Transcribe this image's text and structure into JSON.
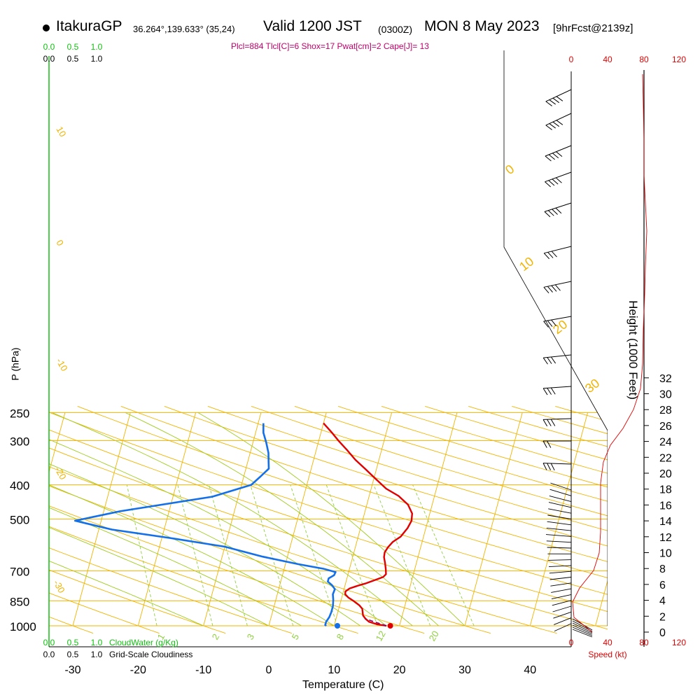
{
  "header": {
    "site": "ItakuraGP",
    "coords": "36.264°,139.633° (35,24)",
    "valid": "Valid 1200 JST",
    "zulu": "(0300Z)",
    "date": "MON 8 May 2023",
    "forecast": "[9hrFcst@2139z]"
  },
  "indices": "Plcl=884 Tlcl[C]=6 Shox=17 Pwat[cm]=2 Cape[J]= 13",
  "labels": {
    "ylabel": "P (hPa)",
    "xlabel": "Temperature (C)",
    "height_label": "Height (1000 Feet)",
    "speed_label": "Speed (kt)",
    "cloudwater_label": "CloudWater (g/Kg)",
    "cloudiness_label": "Grid-Scale Cloudiness"
  },
  "colors": {
    "isobar": "#f0b400",
    "isotherm": "#f0b400",
    "mixing_ratio": "#90d040",
    "moist_adiabat": "#a0cc20",
    "temperature": "#e00000",
    "dewpoint": "#1470e8",
    "parcel": "#8a0060",
    "cloud": "#10c010",
    "speed": "#e00000"
  },
  "chart_data": {
    "type": "skew-t",
    "title": "ItakuraGP Valid 1200 JST (0300Z) MON 8 May 2023",
    "xlabel": "Temperature (C)",
    "ylabel": "P (hPa)",
    "x_ticks": [
      -30,
      -20,
      -10,
      0,
      10,
      20,
      30,
      40
    ],
    "pressure_levels": [
      250,
      300,
      400,
      500,
      700,
      850,
      1000
    ],
    "cloud_scale_ticks": [
      "0.0",
      "0.5",
      "1.0"
    ],
    "skewed_isotherm_labels": [
      "10",
      "0",
      "-10",
      "-20",
      "-30"
    ],
    "dry_adiabat_labels": [
      "0",
      "10",
      "20",
      "30"
    ],
    "mixing_ratio_labels": [
      "1",
      "2",
      "3",
      "5",
      "8",
      "12",
      "20"
    ],
    "temperature": {
      "name": "Temperature",
      "points": [
        [
          18.0,
          1000
        ],
        [
          16.5,
          990
        ],
        [
          15.2,
          975
        ],
        [
          14.5,
          955
        ],
        [
          14.0,
          935
        ],
        [
          13.8,
          915
        ],
        [
          13.6,
          895
        ],
        [
          13.0,
          875
        ],
        [
          12.0,
          852
        ],
        [
          11.0,
          832
        ],
        [
          10.4,
          815
        ],
        [
          10.3,
          800
        ],
        [
          10.8,
          785
        ],
        [
          12.0,
          770
        ],
        [
          13.0,
          760
        ],
        [
          14.2,
          745
        ],
        [
          15.5,
          728
        ],
        [
          15.8,
          715
        ],
        [
          15.6,
          695
        ],
        [
          15.2,
          665
        ],
        [
          14.8,
          640
        ],
        [
          14.7,
          620
        ],
        [
          15.0,
          600
        ],
        [
          15.5,
          580
        ],
        [
          16.5,
          560
        ],
        [
          17.2,
          530
        ],
        [
          17.5,
          505
        ],
        [
          17.3,
          482
        ],
        [
          16.3,
          455
        ],
        [
          14.5,
          430
        ],
        [
          12.3,
          410
        ],
        [
          10.3,
          385
        ],
        [
          8.4,
          362
        ],
        [
          6.4,
          340
        ],
        [
          4.8,
          320
        ],
        [
          3.0,
          300
        ],
        [
          1.7,
          285
        ],
        [
          0.0,
          268
        ]
      ]
    },
    "dewpoint": {
      "name": "Dewpoint",
      "points": [
        [
          8.8,
          1000
        ],
        [
          8.6,
          995
        ],
        [
          8.6,
          975
        ],
        [
          8.9,
          945
        ],
        [
          9.0,
          915
        ],
        [
          9.0,
          880
        ],
        [
          8.8,
          845
        ],
        [
          8.5,
          815
        ],
        [
          8.6,
          788
        ],
        [
          8.0,
          768
        ],
        [
          7.2,
          750
        ],
        [
          7.2,
          735
        ],
        [
          7.9,
          720
        ],
        [
          8.0,
          705
        ],
        [
          6.0,
          690
        ],
        [
          2.0,
          670
        ],
        [
          -3.8,
          638
        ],
        [
          -10.0,
          598
        ],
        [
          -18.8,
          565
        ],
        [
          -28.0,
          535
        ],
        [
          -34.0,
          505
        ],
        [
          -27.5,
          475
        ],
        [
          -14.0,
          432
        ],
        [
          -8.5,
          400
        ],
        [
          -7.5,
          380
        ],
        [
          -6.5,
          360
        ],
        [
          -6.8,
          345
        ],
        [
          -7.2,
          325
        ],
        [
          -8.0,
          303
        ],
        [
          -8.8,
          285
        ],
        [
          -9.2,
          268
        ]
      ]
    },
    "parcel": {
      "name": "Parcel",
      "points": [
        [
          18.0,
          1000
        ],
        [
          15.5,
          968
        ],
        [
          14.5,
          955
        ]
      ]
    },
    "surface_temperature": 18.6,
    "surface_dewpoint": 10.5,
    "wind_speed_ticks": [
      0,
      40,
      80,
      120
    ],
    "height_ticks_kft": [
      0,
      2,
      4,
      6,
      8,
      10,
      12,
      14,
      16,
      18,
      20,
      22,
      24,
      26,
      28,
      30,
      32
    ]
  }
}
